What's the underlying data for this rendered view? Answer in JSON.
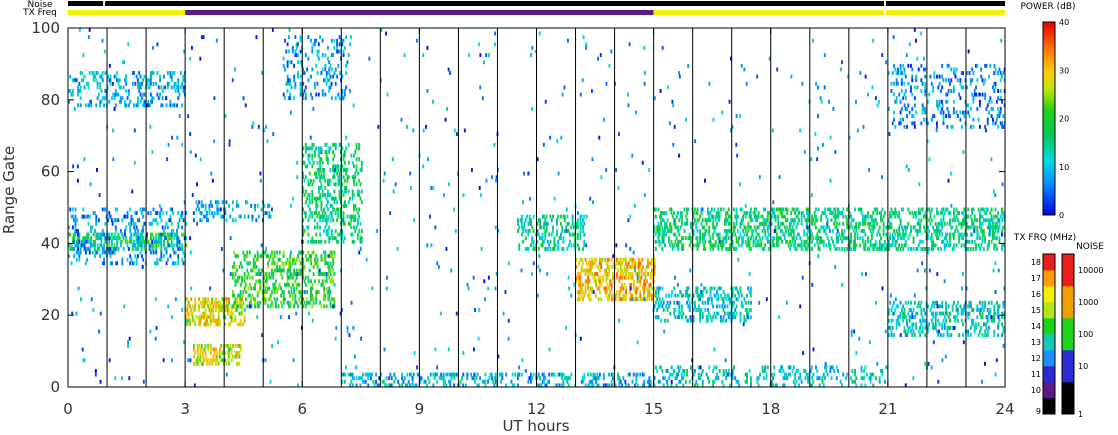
{
  "chart_data": {
    "type": "heatmap",
    "xlabel": "UT hours",
    "ylabel": "Range Gate",
    "xlim": [
      0,
      24
    ],
    "ylim": [
      0,
      100
    ],
    "x_ticks": [
      "0",
      "3",
      "6",
      "9",
      "12",
      "15",
      "18",
      "21",
      "24"
    ],
    "x_tick_values": [
      0,
      3,
      6,
      9,
      12,
      15,
      18,
      21,
      24
    ],
    "y_ticks": [
      "0",
      "20",
      "40",
      "60",
      "80",
      "100"
    ],
    "y_tick_values": [
      0,
      20,
      40,
      60,
      80,
      100
    ],
    "scan_boundaries_ut": [
      1,
      2,
      3,
      4,
      5,
      6,
      7,
      8,
      9,
      10,
      11,
      12,
      13,
      14,
      15,
      16,
      17,
      18,
      19,
      20,
      21,
      22,
      23
    ],
    "top_bars": {
      "noise_label": "Noise",
      "txfreq_label": "TX Freq",
      "noise_segments": [
        {
          "start": 0,
          "end": 0.9,
          "color": "#000000"
        },
        {
          "start": 0.95,
          "end": 20.9,
          "color": "#000000"
        },
        {
          "start": 20.95,
          "end": 24,
          "color": "#000000"
        }
      ],
      "txfreq_segments": [
        {
          "start": 0,
          "end": 3,
          "color": "#f0f000"
        },
        {
          "start": 3,
          "end": 15,
          "color": "#5a1a8a"
        },
        {
          "start": 15,
          "end": 20.9,
          "color": "#f0f000"
        },
        {
          "start": 20.95,
          "end": 24,
          "color": "#f0f000"
        }
      ]
    },
    "scatter_bands": [
      {
        "t0": 0,
        "t1": 3,
        "g0": 38,
        "g1": 43,
        "power": 18,
        "density": 0.75
      },
      {
        "t0": 0,
        "t1": 3,
        "g0": 34,
        "g1": 50,
        "power": 8,
        "density": 0.35
      },
      {
        "t0": 0,
        "t1": 3,
        "g0": 78,
        "g1": 88,
        "power": 9,
        "density": 0.45
      },
      {
        "t0": 3,
        "t1": 4.5,
        "g0": 17,
        "g1": 25,
        "power": 28,
        "density": 0.85
      },
      {
        "t0": 3.2,
        "t1": 4.4,
        "g0": 6,
        "g1": 12,
        "power": 27,
        "density": 0.7
      },
      {
        "t0": 4.2,
        "t1": 6.8,
        "g0": 22,
        "g1": 38,
        "power": 20,
        "density": 0.6
      },
      {
        "t0": 6,
        "t1": 7.5,
        "g0": 40,
        "g1": 68,
        "power": 16,
        "density": 0.55
      },
      {
        "t0": 3.2,
        "t1": 5.2,
        "g0": 46,
        "g1": 52,
        "power": 9,
        "density": 0.4
      },
      {
        "t0": 5.5,
        "t1": 7.2,
        "g0": 80,
        "g1": 98,
        "power": 8,
        "density": 0.3
      },
      {
        "t0": 11.5,
        "t1": 13.2,
        "g0": 38,
        "g1": 48,
        "power": 14,
        "density": 0.6
      },
      {
        "t0": 13,
        "t1": 15,
        "g0": 24,
        "g1": 36,
        "power": 30,
        "density": 0.8
      },
      {
        "t0": 7,
        "t1": 15,
        "g0": 0,
        "g1": 4,
        "power": 10,
        "density": 0.55
      },
      {
        "t0": 15,
        "t1": 21,
        "g0": 38,
        "g1": 50,
        "power": 16,
        "density": 0.7
      },
      {
        "t0": 15,
        "t1": 17.5,
        "g0": 18,
        "g1": 28,
        "power": 12,
        "density": 0.5
      },
      {
        "t0": 15,
        "t1": 21,
        "g0": 0,
        "g1": 6,
        "power": 12,
        "density": 0.35
      },
      {
        "t0": 21,
        "t1": 24,
        "g0": 38,
        "g1": 50,
        "power": 15,
        "density": 0.7
      },
      {
        "t0": 21,
        "t1": 24,
        "g0": 14,
        "g1": 24,
        "power": 12,
        "density": 0.55
      },
      {
        "t0": 21,
        "t1": 24,
        "g0": 72,
        "g1": 90,
        "power": 7,
        "density": 0.3
      }
    ],
    "colorbars": {
      "power": {
        "title": "POWER (dB)",
        "min": 0,
        "max": 40,
        "ticks": [
          "0",
          "10",
          "20",
          "30",
          "40"
        ]
      },
      "txfreq": {
        "title": "TX FRQ (MHz)",
        "ticks": [
          "9",
          "10",
          "11",
          "12",
          "13",
          "14",
          "15",
          "16",
          "17",
          "18"
        ],
        "colors": [
          "#000000",
          "#5a1a8a",
          "#2a2ad0",
          "#1e8fff",
          "#19c8b4",
          "#1ed21e",
          "#b4e614",
          "#f0f000",
          "#ff9a00",
          "#e61e1e"
        ]
      },
      "noise": {
        "title": "NOISE",
        "ticks": [
          "1",
          "10",
          "100",
          "1000",
          "10000"
        ],
        "colors": [
          "#000000",
          "#2a2ad0",
          "#1ed21e",
          "#f0a000",
          "#e61e1e"
        ]
      }
    }
  }
}
